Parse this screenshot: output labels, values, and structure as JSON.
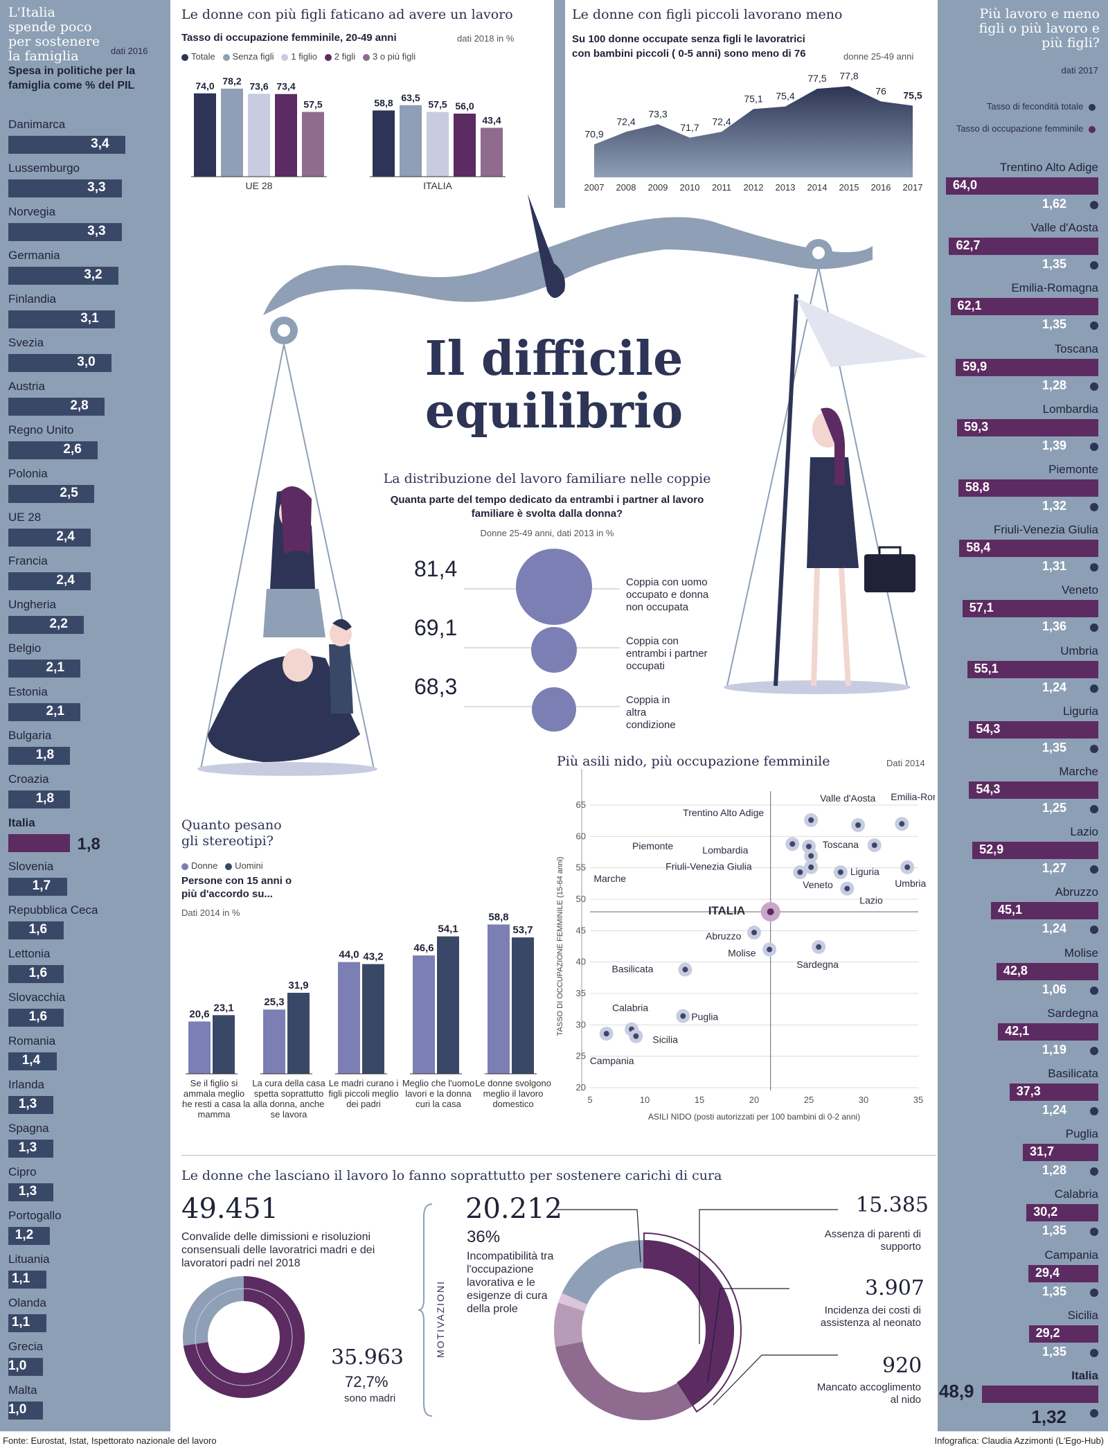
{
  "colors": {
    "navy": "#2d3455",
    "gray_blue": "#8f9fb5",
    "light": "#c7cce0",
    "purple": "#5c2b61",
    "mauve": "#8f6b8f",
    "sidebar": "#8d9fb5",
    "bar_dark": "#3a4868",
    "lavender": "#7b7fb3",
    "scatter_dot": "#3e476a"
  },
  "left_panel": {
    "title": "L'Italia spende poco per sostenere la famiglia",
    "date": "dati 2016",
    "subtitle": "Spesa in politiche per la famiglia come % del PIL",
    "items": [
      {
        "country": "Danimarca",
        "value": "3,4"
      },
      {
        "country": "Lussemburgo",
        "value": "3,3"
      },
      {
        "country": "Norvegia",
        "value": "3,3"
      },
      {
        "country": "Germania",
        "value": "3,2"
      },
      {
        "country": "Finlandia",
        "value": "3,1"
      },
      {
        "country": "Svezia",
        "value": "3,0"
      },
      {
        "country": "Austria",
        "value": "2,8"
      },
      {
        "country": "Regno Unito",
        "value": "2,6"
      },
      {
        "country": "Polonia",
        "value": "2,5"
      },
      {
        "country": "UE 28",
        "value": "2,4"
      },
      {
        "country": "Francia",
        "value": "2,4"
      },
      {
        "country": "Ungheria",
        "value": "2,2"
      },
      {
        "country": "Belgio",
        "value": "2,1"
      },
      {
        "country": "Estonia",
        "value": "2,1"
      },
      {
        "country": "Bulgaria",
        "value": "1,8"
      },
      {
        "country": "Croazia",
        "value": "1,8"
      },
      {
        "country": "Italia",
        "value": "1,8",
        "highlight": true
      },
      {
        "country": "Slovenia",
        "value": "1,7"
      },
      {
        "country": "Repubblica Ceca",
        "value": "1,6"
      },
      {
        "country": "Lettonia",
        "value": "1,6"
      },
      {
        "country": "Slovacchia",
        "value": "1,6"
      },
      {
        "country": "Romania",
        "value": "1,4"
      },
      {
        "country": "Irlanda",
        "value": "1,3"
      },
      {
        "country": "Spagna",
        "value": "1,3"
      },
      {
        "country": "Cipro",
        "value": "1,3"
      },
      {
        "country": "Portogallo",
        "value": "1,2"
      },
      {
        "country": "Lituania",
        "value": "1,1"
      },
      {
        "country": "Olanda",
        "value": "1,1"
      },
      {
        "country": "Grecia",
        "value": "1,0"
      },
      {
        "country": "Malta",
        "value": "1,0"
      }
    ]
  },
  "right_panel": {
    "title": "Più lavoro e meno figli o più lavoro e più figli?",
    "date": "dati 2017",
    "legend_fert": "Tasso di fecondità totale",
    "legend_occ": "Tasso di occupazione femminile",
    "items": [
      {
        "region": "Trentino Alto Adige",
        "occ": "64,0",
        "fert": "1,62"
      },
      {
        "region": "Valle d'Aosta",
        "occ": "62,7",
        "fert": "1,35"
      },
      {
        "region": "Emilia-Romagna",
        "occ": "62,1",
        "fert": "1,35"
      },
      {
        "region": "Toscana",
        "occ": "59,9",
        "fert": "1,28"
      },
      {
        "region": "Lombardia",
        "occ": "59,3",
        "fert": "1,39"
      },
      {
        "region": "Piemonte",
        "occ": "58,8",
        "fert": "1,32"
      },
      {
        "region": "Friuli-Venezia Giulia",
        "occ": "58,4",
        "fert": "1,31"
      },
      {
        "region": "Veneto",
        "occ": "57,1",
        "fert": "1,36"
      },
      {
        "region": "Umbria",
        "occ": "55,1",
        "fert": "1,24"
      },
      {
        "region": "Liguria",
        "occ": "54,3",
        "fert": "1,35"
      },
      {
        "region": "Marche",
        "occ": "54,3",
        "fert": "1,25"
      },
      {
        "region": "Lazio",
        "occ": "52,9",
        "fert": "1,27"
      },
      {
        "region": "Abruzzo",
        "occ": "45,1",
        "fert": "1,24"
      },
      {
        "region": "Molise",
        "occ": "42,8",
        "fert": "1,06"
      },
      {
        "region": "Sardegna",
        "occ": "42,1",
        "fert": "1,19"
      },
      {
        "region": "Basilicata",
        "occ": "37,3",
        "fert": "1,24"
      },
      {
        "region": "Puglia",
        "occ": "31,7",
        "fert": "1,28"
      },
      {
        "region": "Calabria",
        "occ": "30,2",
        "fert": "1,35"
      },
      {
        "region": "Campania",
        "occ": "29,4",
        "fert": "1,35"
      },
      {
        "region": "Sicilia",
        "occ": "29,2",
        "fert": "1,35"
      },
      {
        "region": "Italia",
        "occ": "48,9",
        "fert": "1,32",
        "highlight": true
      }
    ]
  },
  "main_title_line1": "Il difficile",
  "main_title_line2": "equilibrio",
  "chart1": {
    "title": "Le donne con più figli faticano ad avere un lavoro",
    "subtitle": "Tasso di occupazione femminile, 20-49 anni",
    "date": "dati 2018 in %",
    "legend": [
      "Totale",
      "Senza figli",
      "1 figlio",
      "2 figli",
      "3 o più figli"
    ]
  },
  "chart2": {
    "title": "Le donne con figli piccoli lavorano meno",
    "subtitle": "Su 100 donne occupate senza figli le lavoratrici con bambini piccoli ( 0-5 anni) sono meno di 76",
    "date": "donne 25-49 anni"
  },
  "bubbles": {
    "title": "La distribuzione del lavoro familiare nelle coppie",
    "subtitle": "Quanta parte del tempo dedicato da entrambi i partner al lavoro familiare è svolta dalla donna?",
    "date": "Donne 25-49 anni, dati 2013 in %",
    "items": [
      {
        "value": "81,4",
        "label": "Coppia con uomo occupato e donna non occupata"
      },
      {
        "value": "69,1",
        "label": "Coppia con entrambi i partner occupati"
      },
      {
        "value": "68,3",
        "label": "Coppia in altra condizione"
      }
    ]
  },
  "stereotypes": {
    "title": "Quanto pesano gli stereotipi?",
    "legend": [
      "Donne",
      "Uomini"
    ],
    "subtitle": "Persone con 15 anni o più d'accordo su...",
    "date": "Dati 2014 in %"
  },
  "scatter": {
    "title": "Più asili nido, più occupazione femminile",
    "date": "Dati 2014",
    "xlabel": "ASILI NIDO (posti autorizzati per 100 bambini di 0-2 anni)",
    "ylabel": "TASSO DI OCCUPAZIONE FEMMINILE (15-64 anni)"
  },
  "bottom": {
    "title": "Le donne che lasciano il lavoro lo fanno soprattutto per sostenere carichi di cura",
    "total": "49.451",
    "total_desc": "Convalide delle dimissioni e risoluzioni consensuali delle lavoratrici madri e dei lavoratori padri nel 2018",
    "mothers": "35.963",
    "mothers_pct": "72,7%",
    "mothers_label": "sono madri",
    "motivazioni": "MOTIVAZIONI",
    "main_reason_value": "20.212",
    "main_reason_pct": "36%",
    "main_reason_desc": "Incompatibilità tra l'occupazione lavorativa e le esigenze di cura della prole",
    "reasons": [
      {
        "value": "15.385",
        "label": "Assenza di parenti di supporto"
      },
      {
        "value": "3.907",
        "label": "Incidenza dei costi di assistenza al neonato"
      },
      {
        "value": "920",
        "label": "Mancato accoglimento al nido"
      }
    ]
  },
  "footer": {
    "source": "Fonte: Eurostat, Istat, Ispettorato nazionale del lavoro",
    "credit": "Infografica: Claudia Azzimonti (L'Ego-Hub)"
  },
  "chart_data": [
    {
      "type": "bar",
      "title": "Le donne con più figli faticano ad avere un lavoro",
      "categories": [
        "UE 28",
        "ITALIA"
      ],
      "series": [
        {
          "name": "Totale",
          "values": [
            74.0,
            58.8
          ],
          "labels": [
            "74,0",
            "58,8"
          ]
        },
        {
          "name": "Senza figli",
          "values": [
            78.2,
            63.5
          ],
          "labels": [
            "78,2",
            "63,5"
          ]
        },
        {
          "name": "1 figlio",
          "values": [
            73.6,
            57.5
          ],
          "labels": [
            "73,6",
            "57,5"
          ]
        },
        {
          "name": "2 figli",
          "values": [
            73.4,
            56.0
          ],
          "labels": [
            "73,4",
            "56,0"
          ]
        },
        {
          "name": "3 o più figli",
          "values": [
            57.5,
            43.4
          ],
          "labels": [
            "57,5",
            "43,4"
          ]
        }
      ],
      "ylim": [
        0,
        80
      ]
    },
    {
      "type": "area",
      "title": "Le donne con figli piccoli lavorano meno",
      "x": [
        "2007",
        "2008",
        "2009",
        "2010",
        "2011",
        "2012",
        "2013",
        "2014",
        "2015",
        "2016",
        "2017"
      ],
      "values": [
        70.9,
        72.4,
        73.3,
        71.7,
        72.4,
        75.1,
        75.4,
        77.5,
        77.8,
        76,
        75.5
      ],
      "labels": [
        "70,9",
        "72,4",
        "73,3",
        "71,7",
        "72,4",
        "75,1",
        "75,4",
        "77,5",
        "77,8",
        "76",
        "75,5"
      ]
    },
    {
      "type": "bar",
      "title": "Quanto pesano gli stereotipi?",
      "categories": [
        "Se il figlio si ammala meglio che resti a casa la mamma",
        "La cura della casa spetta soprattutto alla donna, anche se lavora",
        "Le madri curano i figli piccoli meglio dei padri",
        "Meglio che l'uomo lavori e la donna curi la casa",
        "Le donne svolgono meglio il lavoro domestico"
      ],
      "series": [
        {
          "name": "Donne",
          "values": [
            20.6,
            25.3,
            44.0,
            46.6,
            58.8
          ],
          "labels": [
            "20,6",
            "25,3",
            "44,0",
            "46,6",
            "58,8"
          ]
        },
        {
          "name": "Uomini",
          "values": [
            23.1,
            31.9,
            43.2,
            54.1,
            53.7
          ],
          "labels": [
            "23,1",
            "31,9",
            "43,2",
            "54,1",
            "53,7"
          ]
        }
      ]
    },
    {
      "type": "scatter",
      "title": "Più asili nido, più occupazione femminile",
      "xlim": [
        5,
        35
      ],
      "ylim": [
        20,
        65
      ],
      "xticks": [
        "5",
        "10",
        "15",
        "20",
        "25",
        "30",
        "35"
      ],
      "yticks": [
        "20",
        "25",
        "30",
        "35",
        "40",
        "45",
        "50",
        "55",
        "60",
        "65"
      ],
      "italy_ref": {
        "x": 21.5,
        "y": 48
      },
      "points": [
        {
          "label": "Trentino Alto Adige",
          "x": 25.2,
          "y": 62.6
        },
        {
          "label": "Valle d'Aosta",
          "x": 29.5,
          "y": 61.8
        },
        {
          "label": "Emilia-Romagna",
          "x": 33.5,
          "y": 62.0
        },
        {
          "label": "Lombardia",
          "x": 23.5,
          "y": 58.8
        },
        {
          "label": "Piemonte",
          "x": 25,
          "y": 58.4
        },
        {
          "label": "Toscana",
          "x": 31,
          "y": 58.6
        },
        {
          "label": "Friuli-Venezia Giulia",
          "x": 25.2,
          "y": 56.9
        },
        {
          "label": "Marche",
          "x": 24.2,
          "y": 54.3
        },
        {
          "label": "Veneto",
          "x": 25.2,
          "y": 55.1
        },
        {
          "label": "Liguria",
          "x": 27.9,
          "y": 54.3
        },
        {
          "label": "Umbria",
          "x": 34,
          "y": 55.1
        },
        {
          "label": "Lazio",
          "x": 28.5,
          "y": 51.7
        },
        {
          "label": "ITALIA",
          "x": 21.5,
          "y": 48.0
        },
        {
          "label": "Abruzzo",
          "x": 20,
          "y": 44.7
        },
        {
          "label": "Molise",
          "x": 21.4,
          "y": 42.0
        },
        {
          "label": "Sardegna",
          "x": 25.9,
          "y": 42.4
        },
        {
          "label": "Basilicata",
          "x": 13.7,
          "y": 38.8
        },
        {
          "label": "Puglia",
          "x": 13.5,
          "y": 31.4
        },
        {
          "label": "Calabria",
          "x": 8.8,
          "y": 29.3
        },
        {
          "label": "Sicilia",
          "x": 9.2,
          "y": 28.2
        },
        {
          "label": "Campania",
          "x": 6.5,
          "y": 28.6
        }
      ]
    },
    {
      "type": "bar",
      "title": "L'Italia spende poco per sostenere la famiglia",
      "categories": [
        "Danimarca",
        "Lussemburgo",
        "Norvegia",
        "Germania",
        "Finlandia",
        "Svezia",
        "Austria",
        "Regno Unito",
        "Polonia",
        "UE 28",
        "Francia",
        "Ungheria",
        "Belgio",
        "Estonia",
        "Bulgaria",
        "Croazia",
        "Italia",
        "Slovenia",
        "Repubblica Ceca",
        "Lettonia",
        "Slovacchia",
        "Romania",
        "Irlanda",
        "Spagna",
        "Cipro",
        "Portogallo",
        "Lituania",
        "Olanda",
        "Grecia",
        "Malta"
      ],
      "values": [
        3.4,
        3.3,
        3.3,
        3.2,
        3.1,
        3.0,
        2.8,
        2.6,
        2.5,
        2.4,
        2.4,
        2.2,
        2.1,
        2.1,
        1.8,
        1.8,
        1.8,
        1.7,
        1.6,
        1.6,
        1.6,
        1.4,
        1.3,
        1.3,
        1.3,
        1.2,
        1.1,
        1.1,
        1.0,
        1.0
      ]
    },
    {
      "type": "bar",
      "title": "Più lavoro e meno figli o più lavoro e più figli?",
      "categories": [
        "Trentino Alto Adige",
        "Valle d'Aosta",
        "Emilia-Romagna",
        "Toscana",
        "Lombardia",
        "Piemonte",
        "Friuli-Venezia Giulia",
        "Veneto",
        "Umbria",
        "Liguria",
        "Marche",
        "Lazio",
        "Abruzzo",
        "Molise",
        "Sardegna",
        "Basilicata",
        "Puglia",
        "Calabria",
        "Campania",
        "Sicilia",
        "Italia"
      ],
      "series": [
        {
          "name": "Tasso di occupazione femminile",
          "values": [
            64.0,
            62.7,
            62.1,
            59.9,
            59.3,
            58.8,
            58.4,
            57.1,
            55.1,
            54.3,
            54.3,
            52.9,
            45.1,
            42.8,
            42.1,
            37.3,
            31.7,
            30.2,
            29.4,
            29.2,
            48.9
          ]
        },
        {
          "name": "Tasso di fecondità totale",
          "values": [
            1.62,
            1.35,
            1.35,
            1.28,
            1.39,
            1.32,
            1.31,
            1.36,
            1.24,
            1.35,
            1.25,
            1.27,
            1.24,
            1.06,
            1.19,
            1.24,
            1.28,
            1.35,
            1.35,
            1.35,
            1.32
          ]
        }
      ]
    },
    {
      "type": "pie",
      "title": "Convalide delle dimissioni",
      "total": 49451,
      "slices": [
        {
          "label": "sono madri",
          "value": 35963,
          "pct": 72.7
        },
        {
          "label": "padri",
          "value": 13488
        }
      ]
    },
    {
      "type": "pie",
      "title": "Motivazioni",
      "total": 49451,
      "slices": [
        {
          "label": "Incompatibilità tra l'occupazione lavorativa e le esigenze di cura della prole",
          "value": 20212,
          "pct": 36
        },
        {
          "label": "Assenza di parenti di supporto",
          "value": 15385
        },
        {
          "label": "Incidenza dei costi di assistenza al neonato",
          "value": 3907
        },
        {
          "label": "Mancato accoglimento al nido",
          "value": 920
        }
      ]
    }
  ]
}
